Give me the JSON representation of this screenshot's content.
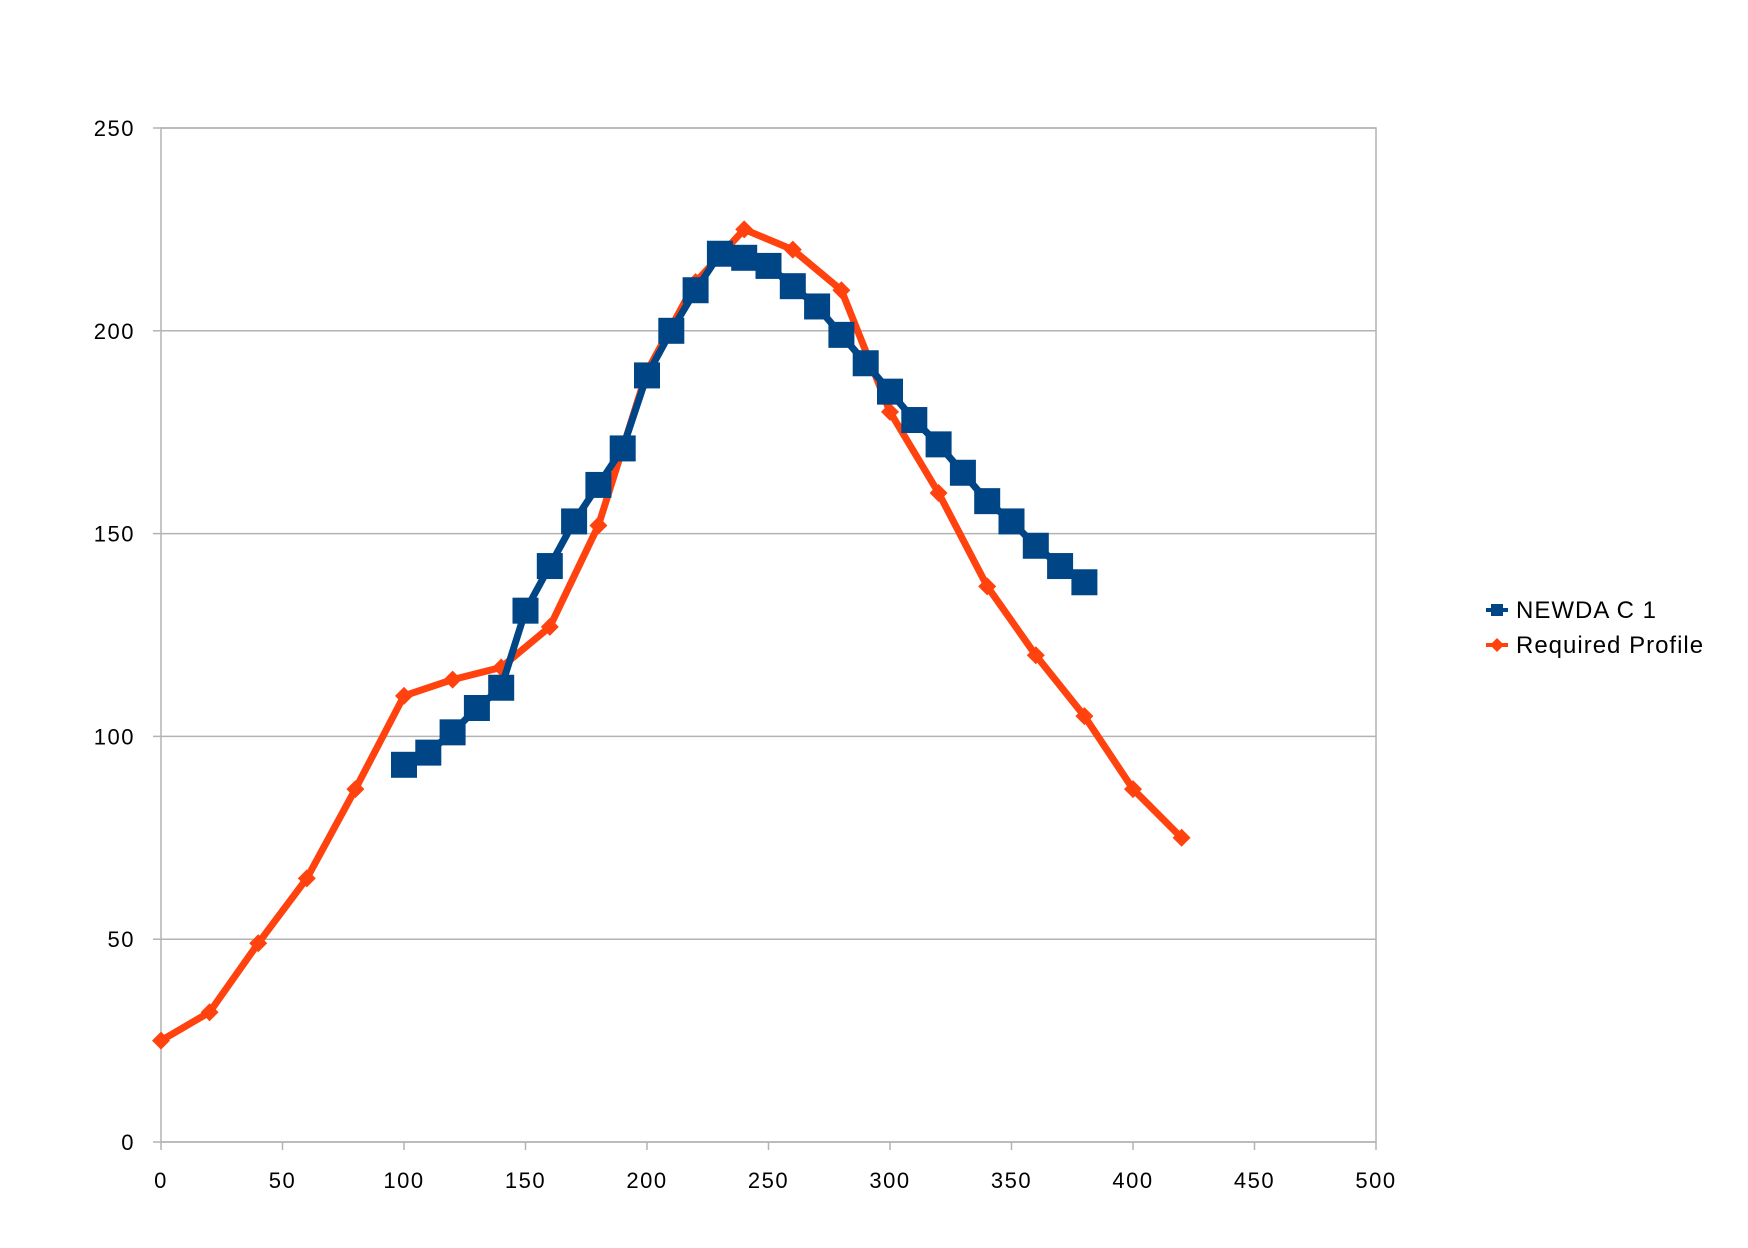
{
  "chart_data": {
    "type": "line",
    "title": "",
    "xlabel": "",
    "ylabel": "",
    "xlim": [
      0,
      500
    ],
    "ylim": [
      0,
      250
    ],
    "xticks": [
      0,
      50,
      100,
      150,
      200,
      250,
      300,
      350,
      400,
      450,
      500
    ],
    "yticks": [
      0,
      50,
      100,
      150,
      200,
      250
    ],
    "grid": "horizontal",
    "legend_position": "right",
    "series": [
      {
        "name": "NEWDA C 1",
        "color": "#004586",
        "marker": "square",
        "x": [
          100,
          110,
          120,
          130,
          140,
          150,
          160,
          170,
          180,
          190,
          200,
          210,
          220,
          230,
          240,
          250,
          260,
          270,
          280,
          290,
          300,
          310,
          320,
          330,
          340,
          350,
          360,
          370,
          380
        ],
        "y": [
          93,
          96,
          101,
          107,
          112,
          131,
          142,
          153,
          162,
          171,
          189,
          200,
          210,
          219,
          218,
          216,
          211,
          206,
          199,
          192,
          185,
          178,
          172,
          165,
          158,
          153,
          147,
          142,
          138
        ]
      },
      {
        "name": "Required Profile",
        "color": "#ff420e",
        "marker": "diamond",
        "x": [
          0,
          20,
          40,
          60,
          80,
          100,
          120,
          140,
          160,
          180,
          200,
          220,
          240,
          260,
          280,
          300,
          320,
          340,
          360,
          380,
          400,
          420
        ],
        "y": [
          25,
          32,
          49,
          65,
          87,
          110,
          114,
          117,
          127,
          152,
          190,
          212,
          225,
          220,
          210,
          180,
          160,
          137,
          120,
          105,
          87,
          75
        ]
      }
    ]
  }
}
